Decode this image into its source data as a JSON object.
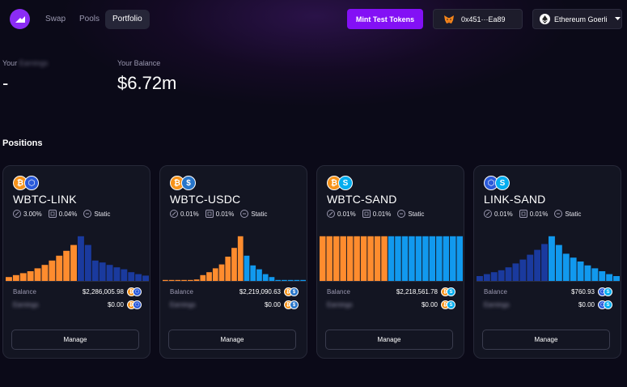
{
  "nav": {
    "links": [
      {
        "label": "Swap"
      },
      {
        "label": "Pools"
      },
      {
        "label": "Portfolio",
        "active": true
      }
    ],
    "mint_label": "Mint Test Tokens",
    "wallet_address": "0x451···Ea89",
    "network": "Ethereum Goerli"
  },
  "summary": {
    "earnings_prefix": "Your",
    "earnings_word": "Earnings",
    "earnings_value": "-",
    "balance_label": "Your Balance",
    "balance_value": "$6.72m"
  },
  "section_title": "Positions",
  "colors": {
    "orange": "#ff8c2e",
    "blue_dark": "#1a3a9e",
    "blue_light": "#1199ee",
    "accent": "#8310f5"
  },
  "positions": [
    {
      "pair": "WBTC-LINK",
      "tokens": [
        "bitcoin",
        "chainlink"
      ],
      "fee_a": "3.00%",
      "fee_b": "0.04%",
      "strategy": "Static",
      "balance_label": "Balance",
      "balance": "$2,286,005.98",
      "earnings_label": "Earnings",
      "earnings": "$0.00",
      "manage_label": "Manage",
      "chart_data": {
        "type": "bar",
        "bars": [
          [
            0.08,
            "o"
          ],
          [
            0.12,
            "o"
          ],
          [
            0.16,
            "o"
          ],
          [
            0.2,
            "o"
          ],
          [
            0.26,
            "o"
          ],
          [
            0.33,
            "o"
          ],
          [
            0.42,
            "o"
          ],
          [
            0.52,
            "o"
          ],
          [
            0.62,
            "o"
          ],
          [
            0.74,
            "o"
          ],
          [
            0.92,
            "d"
          ],
          [
            0.74,
            "d"
          ],
          [
            0.42,
            "d"
          ],
          [
            0.38,
            "d"
          ],
          [
            0.33,
            "d"
          ],
          [
            0.28,
            "d"
          ],
          [
            0.24,
            "d"
          ],
          [
            0.18,
            "d"
          ],
          [
            0.14,
            "d"
          ],
          [
            0.11,
            "d"
          ]
        ]
      }
    },
    {
      "pair": "WBTC-USDC",
      "tokens": [
        "bitcoin",
        "usdc"
      ],
      "fee_a": "0.01%",
      "fee_b": "0.01%",
      "strategy": "Static",
      "balance_label": "Balance",
      "balance": "$2,219,090.63",
      "earnings_label": "Earnings",
      "earnings": "$0.00",
      "manage_label": "Manage",
      "chart_data": {
        "type": "bar",
        "bars": [
          [
            0.02,
            "o"
          ],
          [
            0.02,
            "o"
          ],
          [
            0.02,
            "o"
          ],
          [
            0.02,
            "o"
          ],
          [
            0.02,
            "o"
          ],
          [
            0.03,
            "o"
          ],
          [
            0.12,
            "o"
          ],
          [
            0.18,
            "o"
          ],
          [
            0.26,
            "o"
          ],
          [
            0.34,
            "o"
          ],
          [
            0.5,
            "o"
          ],
          [
            0.68,
            "o"
          ],
          [
            0.92,
            "o"
          ],
          [
            0.52,
            "l"
          ],
          [
            0.32,
            "l"
          ],
          [
            0.24,
            "l"
          ],
          [
            0.14,
            "l"
          ],
          [
            0.08,
            "l"
          ],
          [
            0.02,
            "l"
          ],
          [
            0.02,
            "l"
          ],
          [
            0.02,
            "l"
          ],
          [
            0.02,
            "l"
          ],
          [
            0.02,
            "l"
          ]
        ]
      }
    },
    {
      "pair": "WBTC-SAND",
      "tokens": [
        "bitcoin",
        "sand"
      ],
      "fee_a": "0.01%",
      "fee_b": "0.01%",
      "strategy": "Static",
      "balance_label": "Balance",
      "balance": "$2,218,561.78",
      "earnings_label": "Earnings",
      "earnings": "$0.00",
      "manage_label": "Manage",
      "chart_data": {
        "type": "bar",
        "bars": [
          [
            0.92,
            "o"
          ],
          [
            0.92,
            "o"
          ],
          [
            0.92,
            "o"
          ],
          [
            0.92,
            "o"
          ],
          [
            0.92,
            "o"
          ],
          [
            0.92,
            "o"
          ],
          [
            0.92,
            "o"
          ],
          [
            0.92,
            "o"
          ],
          [
            0.92,
            "o"
          ],
          [
            0.92,
            "o"
          ],
          [
            0.92,
            "l"
          ],
          [
            0.92,
            "l"
          ],
          [
            0.92,
            "l"
          ],
          [
            0.92,
            "l"
          ],
          [
            0.92,
            "l"
          ],
          [
            0.92,
            "l"
          ],
          [
            0.92,
            "l"
          ],
          [
            0.92,
            "l"
          ],
          [
            0.92,
            "l"
          ],
          [
            0.92,
            "l"
          ],
          [
            0.92,
            "l"
          ]
        ]
      }
    },
    {
      "pair": "LINK-SAND",
      "tokens": [
        "chainlink",
        "sand"
      ],
      "fee_a": "0.01%",
      "fee_b": "0.01%",
      "strategy": "Static",
      "balance_label": "Balance",
      "balance": "$760.93",
      "earnings_label": "Earnings",
      "earnings": "$0.00",
      "manage_label": "Manage",
      "chart_data": {
        "type": "bar",
        "bars": [
          [
            0.1,
            "d"
          ],
          [
            0.14,
            "d"
          ],
          [
            0.18,
            "d"
          ],
          [
            0.22,
            "d"
          ],
          [
            0.28,
            "d"
          ],
          [
            0.36,
            "d"
          ],
          [
            0.44,
            "d"
          ],
          [
            0.54,
            "d"
          ],
          [
            0.64,
            "d"
          ],
          [
            0.76,
            "d"
          ],
          [
            0.92,
            "l"
          ],
          [
            0.74,
            "l"
          ],
          [
            0.56,
            "l"
          ],
          [
            0.48,
            "l"
          ],
          [
            0.4,
            "l"
          ],
          [
            0.32,
            "l"
          ],
          [
            0.26,
            "l"
          ],
          [
            0.2,
            "l"
          ],
          [
            0.14,
            "l"
          ],
          [
            0.1,
            "l"
          ]
        ]
      }
    }
  ]
}
